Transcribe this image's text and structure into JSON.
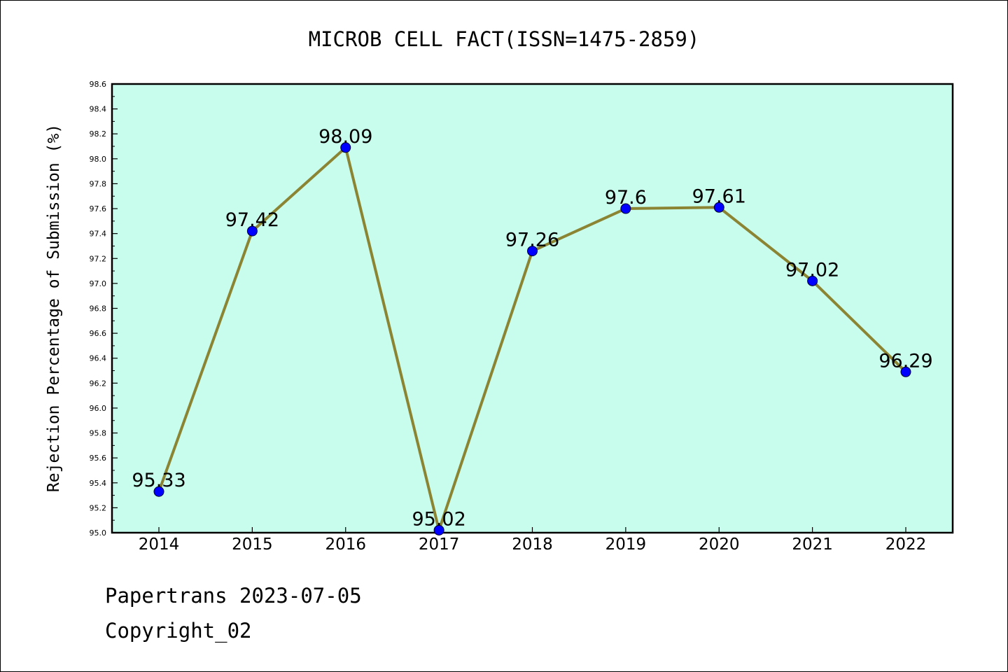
{
  "colors": {
    "plot_background": "#c8fcec",
    "line": "#8b8433",
    "marker": "#0000ff",
    "axis": "#000000"
  },
  "footer": {
    "line1": "Papertrans 2023-07-05",
    "line2": "Copyright_02"
  },
  "chart_data": {
    "type": "line",
    "title": "MICROB CELL FACT(ISSN=1475-2859)",
    "xlabel": "",
    "ylabel": "Rejection Percentage of Submission (%)",
    "categories": [
      "2014",
      "2015",
      "2016",
      "2017",
      "2018",
      "2019",
      "2020",
      "2021",
      "2022"
    ],
    "series": [
      {
        "values": [
          95.33,
          97.42,
          98.09,
          95.02,
          97.26,
          97.6,
          97.61,
          97.02,
          96.29
        ],
        "data_labels": [
          "95.33",
          "97.42",
          "98.09",
          "95.02",
          "97.26",
          "97.6",
          "97.61",
          "97.02",
          "96.29"
        ]
      }
    ],
    "ylim": [
      95.0,
      98.6
    ],
    "yticks": [
      "95.0",
      "95.2",
      "95.4",
      "95.6",
      "95.8",
      "96.0",
      "96.2",
      "96.4",
      "96.6",
      "96.8",
      "97.0",
      "97.2",
      "97.4",
      "97.6",
      "97.8",
      "98.0",
      "98.2",
      "98.4",
      "98.6"
    ],
    "grid": false,
    "legend": "none"
  }
}
